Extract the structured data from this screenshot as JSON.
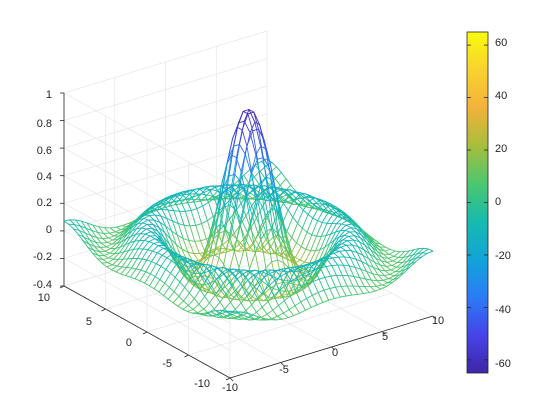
{
  "chart_data": {
    "type": "surface-mesh",
    "title": "",
    "xlabel": "",
    "ylabel": "",
    "zlabel": "",
    "x_range": [
      -10,
      10
    ],
    "y_range": [
      -10,
      10
    ],
    "z_range": [
      -0.4,
      1
    ],
    "x_ticks": [
      "-10",
      "-5",
      "0",
      "5",
      "10"
    ],
    "y_ticks": [
      "-10",
      "-5",
      "0",
      "5",
      "10"
    ],
    "z_ticks": [
      "-0.4",
      "-0.2",
      "0",
      "0.2",
      "0.4",
      "0.6",
      "0.8",
      "1"
    ],
    "surface": {
      "function": "sin(r)/r, r = sqrt(x^2 + y^2)",
      "peak_z": 1,
      "trough_z": -0.22
    },
    "color_by": "laplacian",
    "colorbar": {
      "range": [
        -65,
        65
      ],
      "ticks": [
        "-60",
        "-40",
        "-20",
        "0",
        "20",
        "40",
        "60"
      ],
      "colormap": "parula",
      "colors": [
        "#3e26a8",
        "#4744e8",
        "#2a7cf5",
        "#12a4d9",
        "#16bbad",
        "#4cc770",
        "#a7be3b",
        "#f2b23b",
        "#f9d22e",
        "#f9fb0e"
      ]
    },
    "grid": true,
    "view": "3-D isometric"
  }
}
